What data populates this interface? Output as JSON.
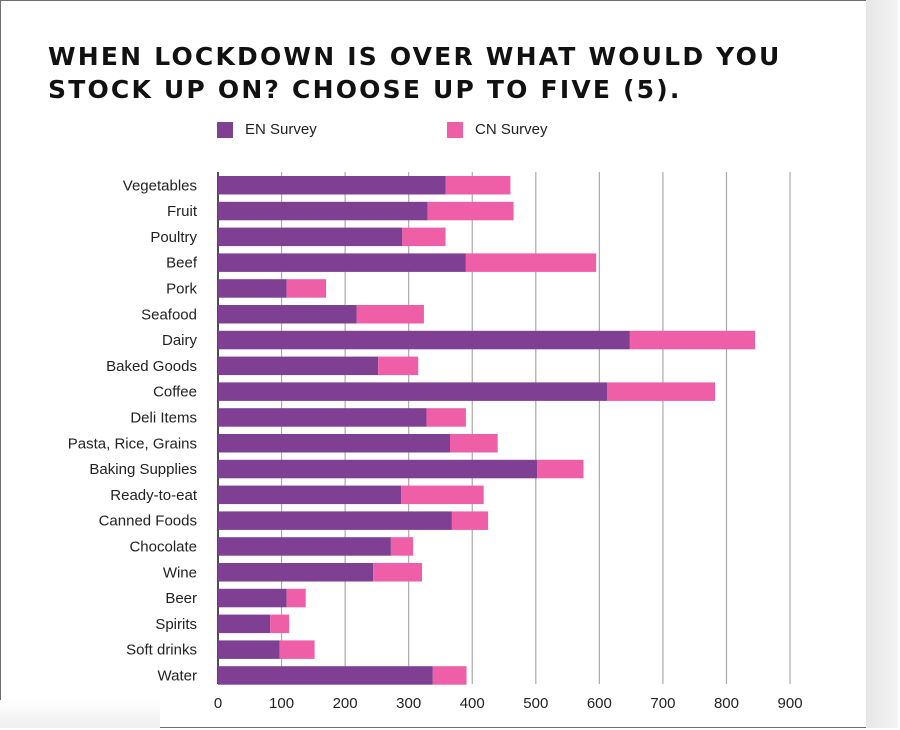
{
  "chart_data": {
    "type": "bar",
    "orientation": "horizontal",
    "stacked": true,
    "title": "WHEN LOCKDOWN IS OVER WHAT WOULD YOU STOCK UP ON? CHOOSE UP TO FIVE (5).",
    "title_lines": [
      "WHEN LOCKDOWN IS OVER WHAT WOULD YOU",
      "STOCK UP ON? CHOOSE UP TO FIVE (5)."
    ],
    "categories": [
      "Vegetables",
      "Fruit",
      "Poultry",
      "Beef",
      "Pork",
      "Seafood",
      "Dairy",
      "Baked Goods",
      "Coffee",
      "Deli Items",
      "Pasta, Rice, Grains",
      "Baking Supplies",
      "Ready-to-eat",
      "Canned Foods",
      "Chocolate",
      "Wine",
      "Beer",
      "Spirits",
      "Soft drinks",
      "Water"
    ],
    "series": [
      {
        "name": "EN Survey",
        "color": "#7f3f92",
        "values": [
          358,
          330,
          290,
          390,
          108,
          218,
          648,
          252,
          612,
          328,
          365,
          502,
          288,
          368,
          272,
          244,
          108,
          82,
          97,
          338
        ]
      },
      {
        "name": "CN Survey",
        "color": "#ee5fa7",
        "values": [
          102,
          135,
          68,
          205,
          62,
          106,
          197,
          63,
          170,
          62,
          75,
          73,
          130,
          57,
          35,
          77,
          30,
          30,
          55,
          53
        ]
      }
    ],
    "xlim": [
      0,
      900
    ],
    "xticks": [
      "0",
      "100",
      "200",
      "300",
      "400",
      "500",
      "600",
      "700",
      "800",
      "900"
    ],
    "grid": true,
    "legend_position": "top"
  }
}
